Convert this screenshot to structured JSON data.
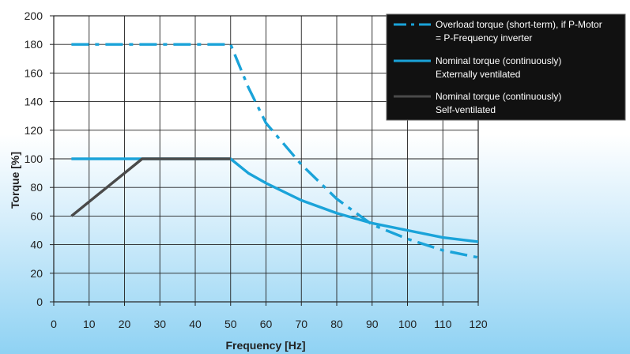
{
  "chart_data": {
    "type": "line",
    "xlabel": "Frequency [Hz]",
    "ylabel": "Torque [%]",
    "xlim": [
      0,
      120
    ],
    "ylim": [
      0,
      200
    ],
    "xticks": [
      0,
      10,
      20,
      30,
      40,
      50,
      60,
      70,
      80,
      90,
      100,
      110,
      120
    ],
    "yticks": [
      0,
      20,
      40,
      60,
      80,
      100,
      120,
      140,
      160,
      180,
      200
    ],
    "grid": true,
    "legend_position": "top-right",
    "series": [
      {
        "name_lines": [
          "Overload torque (short-term), if P-Motor",
          "= P-Frequency inverter"
        ],
        "style": "dash-dot",
        "color": "#1aa3d9",
        "x": [
          5,
          50,
          55,
          60,
          70,
          80,
          90,
          100,
          110,
          120
        ],
        "y": [
          180,
          180,
          150,
          125,
          96,
          72,
          54,
          44,
          36,
          31
        ]
      },
      {
        "name_lines": [
          "Nominal torque (continuously)",
          "Externally ventilated"
        ],
        "style": "solid",
        "color": "#1aa3d9",
        "x": [
          5,
          50,
          55,
          60,
          70,
          80,
          90,
          100,
          110,
          120
        ],
        "y": [
          100,
          100,
          90,
          83,
          71,
          62,
          55,
          50,
          45,
          42
        ]
      },
      {
        "name_lines": [
          "Nominal torque (continuously)",
          "Self-ventilated"
        ],
        "style": "solid",
        "color": "#4a4a4a",
        "x": [
          5,
          25,
          50
        ],
        "y": [
          60,
          100,
          100
        ]
      }
    ]
  }
}
